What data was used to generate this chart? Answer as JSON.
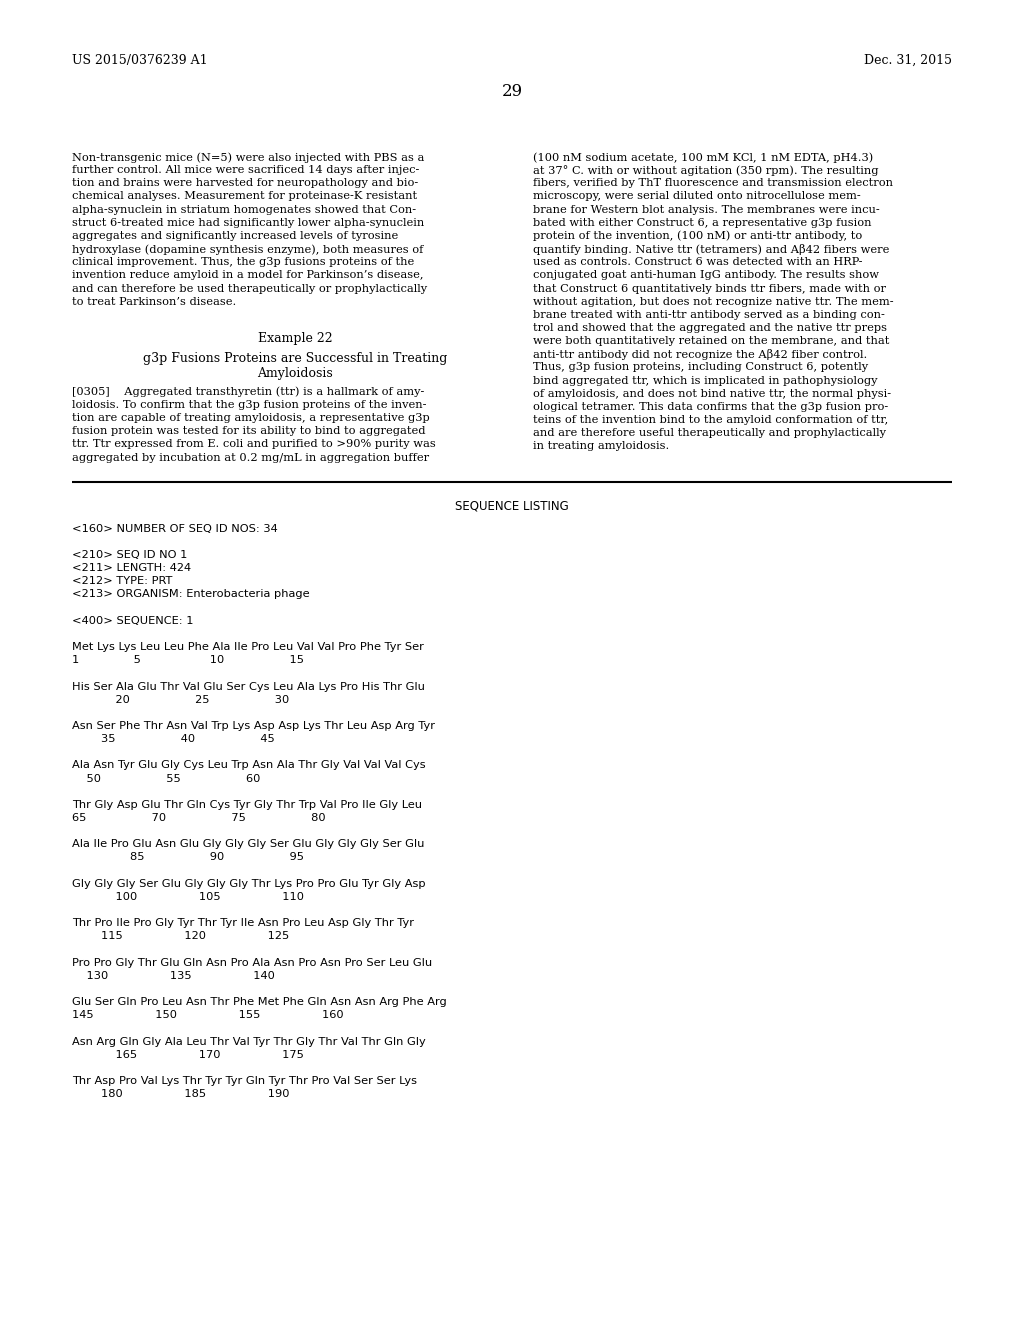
{
  "background_color": "#ffffff",
  "header_left": "US 2015/0376239 A1",
  "header_right": "Dec. 31, 2015",
  "page_number": "29",
  "left_col1": [
    "Non-transgenic mice (N=5) were also injected with PBS as a",
    "further control. All mice were sacrificed 14 days after injec-",
    "tion and brains were harvested for neuropathology and bio-",
    "chemical analyses. Measurement for proteinase-K resistant",
    "alpha-synuclein in striatum homogenates showed that Con-",
    "struct 6-treated mice had significantly lower alpha-synuclein",
    "aggregates and significantly increased levels of tyrosine",
    "hydroxylase (dopamine synthesis enzyme), both measures of",
    "clinical improvement. Thus, the g3p fusions proteins of the",
    "invention reduce amyloid in a model for Parkinson’s disease,",
    "and can therefore be used therapeutically or prophylactically",
    "to treat Parkinson’s disease."
  ],
  "right_col1": [
    "(100 nM sodium acetate, 100 mM KCl, 1 nM EDTA, pH4.3)",
    "at 37° C. with or without agitation (350 rpm). The resulting",
    "fibers, verified by ThT fluorescence and transmission electron",
    "microscopy, were serial diluted onto nitrocellulose mem-",
    "brane for Western blot analysis. The membranes were incu-",
    "bated with either Construct 6, a representative g3p fusion",
    "protein of the invention, (100 nM) or anti-ttr antibody, to",
    "quantify binding. Native ttr (tetramers) and Aβ42 fibers were",
    "used as controls. Construct 6 was detected with an HRP-",
    "conjugated goat anti-human IgG antibody. The results show",
    "that Construct 6 quantitatively binds ttr fibers, made with or",
    "without agitation, but does not recognize native ttr. The mem-",
    "brane treated with anti-ttr antibody served as a binding con-",
    "trol and showed that the aggregated and the native ttr preps",
    "were both quantitatively retained on the membrane, and that",
    "anti-ttr antibody did not recognize the Aβ42 fiber control.",
    "Thus, g3p fusion proteins, including Construct 6, potently",
    "bind aggregated ttr, which is implicated in pathophysiology",
    "of amyloidosis, and does not bind native ttr, the normal physi-",
    "ological tetramer. This data confirms that the g3p fusion pro-",
    "teins of the invention bind to the amyloid conformation of ttr,",
    "and are therefore useful therapeutically and prophylactically",
    "in treating amyloidosis."
  ],
  "example_title": "Example 22",
  "example_subtitle1": "g3p Fusions Proteins are Successful in Treating",
  "example_subtitle2": "Amyloidosis",
  "left_col2": [
    "[0305]    Aggregated transthyretin (ttr) is a hallmark of amy-",
    "loidosis. To confirm that the g3p fusion proteins of the inven-",
    "tion are capable of treating amyloidosis, a representative g3p",
    "fusion protein was tested for its ability to bind to aggregated",
    "ttr. Ttr expressed from E. coli and purified to >90% purity was",
    "aggregated by incubation at 0.2 mg/mL in aggregation buffer"
  ],
  "seq_title": "SEQUENCE LISTING",
  "seq_lines": [
    "<160> NUMBER OF SEQ ID NOS: 34",
    "",
    "<210> SEQ ID NO 1",
    "<211> LENGTH: 424",
    "<212> TYPE: PRT",
    "<213> ORGANISM: Enterobacteria phage",
    "",
    "<400> SEQUENCE: 1",
    "",
    "Met Lys Lys Leu Leu Phe Ala Ile Pro Leu Val Val Pro Phe Tyr Ser",
    "1               5                   10                  15",
    "",
    "His Ser Ala Glu Thr Val Glu Ser Cys Leu Ala Lys Pro His Thr Glu",
    "            20                  25                  30",
    "",
    "Asn Ser Phe Thr Asn Val Trp Lys Asp Asp Lys Thr Leu Asp Arg Tyr",
    "        35                  40                  45",
    "",
    "Ala Asn Tyr Glu Gly Cys Leu Trp Asn Ala Thr Gly Val Val Val Cys",
    "    50                  55                  60",
    "",
    "Thr Gly Asp Glu Thr Gln Cys Tyr Gly Thr Trp Val Pro Ile Gly Leu",
    "65                  70                  75                  80",
    "",
    "Ala Ile Pro Glu Asn Glu Gly Gly Gly Ser Glu Gly Gly Gly Ser Glu",
    "                85                  90                  95",
    "",
    "Gly Gly Gly Ser Glu Gly Gly Gly Thr Lys Pro Pro Glu Tyr Gly Asp",
    "            100                 105                 110",
    "",
    "Thr Pro Ile Pro Gly Tyr Thr Tyr Ile Asn Pro Leu Asp Gly Thr Tyr",
    "        115                 120                 125",
    "",
    "Pro Pro Gly Thr Glu Gln Asn Pro Ala Asn Pro Asn Pro Ser Leu Glu",
    "    130                 135                 140",
    "",
    "Glu Ser Gln Pro Leu Asn Thr Phe Met Phe Gln Asn Asn Arg Phe Arg",
    "145                 150                 155                 160",
    "",
    "Asn Arg Gln Gly Ala Leu Thr Val Tyr Thr Gly Thr Val Thr Gln Gly",
    "            165                 170                 175",
    "",
    "Thr Asp Pro Val Lys Thr Tyr Tyr Gln Tyr Thr Pro Val Ser Ser Lys",
    "        180                 185                 190"
  ]
}
